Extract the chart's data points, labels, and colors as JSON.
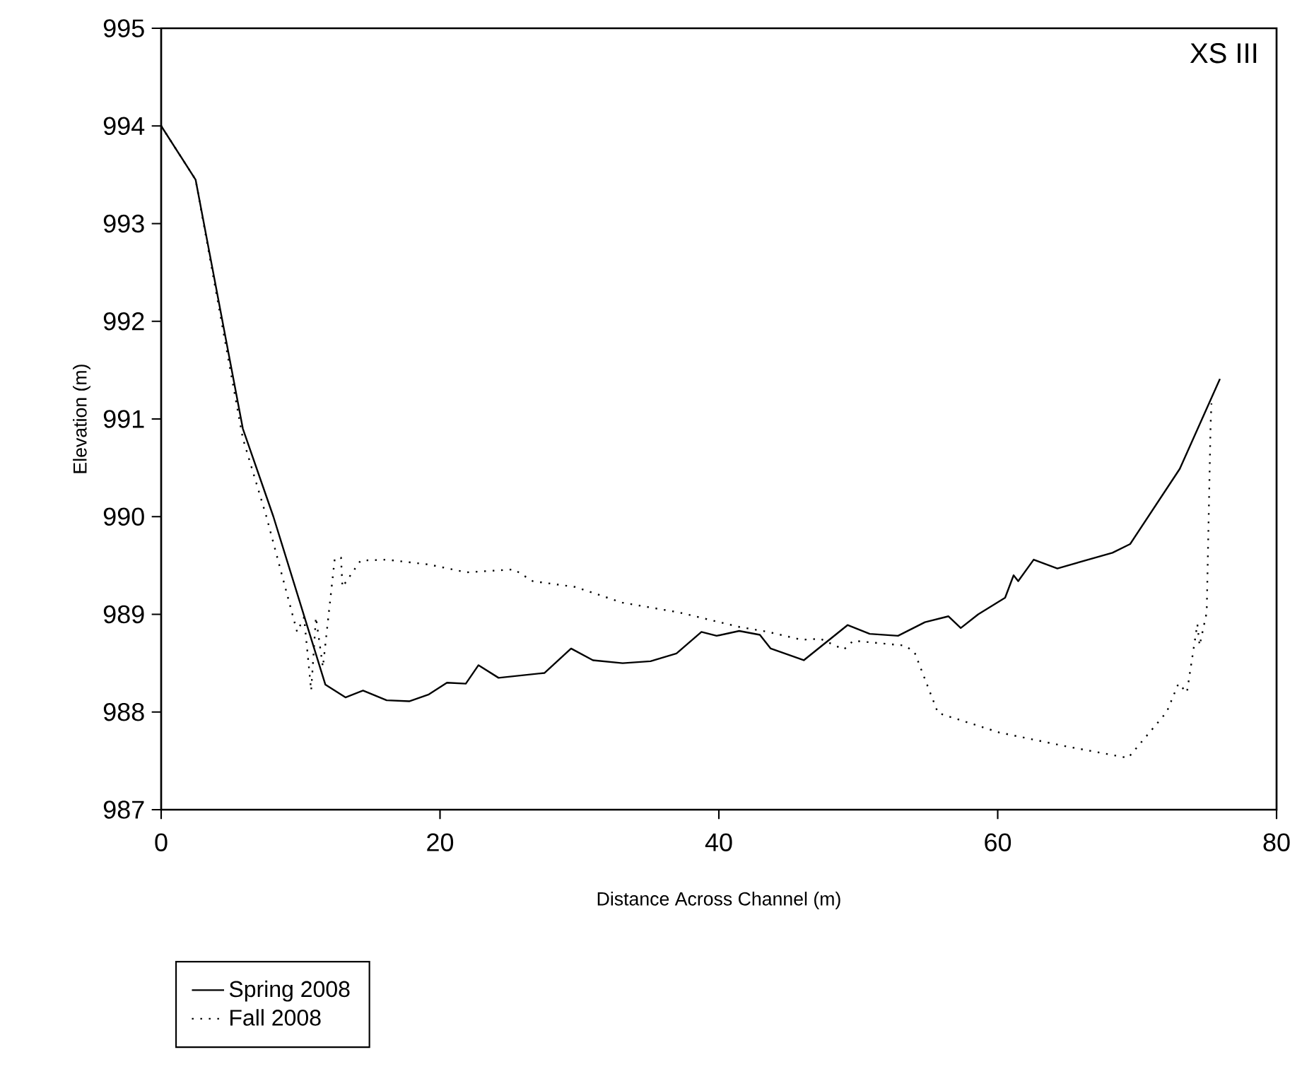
{
  "chart_data": {
    "type": "line",
    "title": "XS III",
    "xlabel": "Distance Across Channel (m)",
    "ylabel": "Elevation (m)",
    "xlim": [
      0,
      80
    ],
    "xticks": [
      0,
      20,
      40,
      60,
      80
    ],
    "ylim": [
      987,
      995
    ],
    "yticks": [
      987,
      988,
      989,
      990,
      991,
      992,
      993,
      994,
      995
    ],
    "grid": false,
    "legend": "bottom left",
    "marker": "none",
    "series": [
      {
        "name": "Spring 2008",
        "color": "#000000",
        "line_style": "solid",
        "x": [
          0,
          2.47,
          5.86,
          8.05,
          11.78,
          13.22,
          14.48,
          16.17,
          17.79,
          19.2,
          20.5,
          21.85,
          22.76,
          24.2,
          27.5,
          29.4,
          30.97,
          33.1,
          35.1,
          36.96,
          38.75,
          39.84,
          41.46,
          42.94,
          43.72,
          46.09,
          49.23,
          50.82,
          52.85,
          54.78,
          56.47,
          57.35,
          58.6,
          60.53,
          61.14,
          61.47,
          62.58,
          64.28,
          68.23,
          69.5,
          73.06,
          75.94
        ],
        "values": [
          994,
          993.45,
          990.9,
          990.0,
          988.28,
          988.15,
          988.22,
          988.12,
          988.11,
          988.18,
          988.3,
          988.29,
          988.48,
          988.35,
          988.4,
          988.65,
          988.53,
          988.5,
          988.52,
          988.6,
          988.82,
          988.78,
          988.83,
          988.79,
          988.65,
          988.53,
          988.89,
          988.8,
          988.78,
          988.92,
          988.98,
          988.86,
          989.0,
          989.17,
          989.4,
          989.34,
          989.56,
          989.47,
          989.63,
          989.72,
          990.49,
          991.41
        ]
      },
      {
        "name": "Fall 2008",
        "color": "#000000",
        "line_style": "dotted",
        "x": [
          0,
          2.47,
          5.86,
          7.55,
          9.75,
          10.25,
          10.76,
          11.1,
          11.6,
          12.45,
          12.9,
          13.0,
          14.3,
          16.17,
          19.2,
          21.9,
          25.3,
          26.65,
          29.7,
          33.07,
          37.13,
          41.5,
          43.55,
          45.92,
          47.27,
          48.97,
          49.64,
          53.36,
          54.04,
          55.72,
          60.12,
          64.85,
          69.35,
          72.12,
          72.96,
          73.57,
          74.32,
          74.48,
          74.99,
          75.27,
          75.33
        ],
        "values": [
          994,
          993.45,
          990.8,
          990.0,
          988.82,
          988.97,
          988.22,
          988.97,
          988.46,
          989.57,
          989.58,
          989.28,
          989.55,
          989.56,
          989.51,
          989.43,
          989.46,
          989.34,
          989.28,
          989.12,
          989.02,
          988.87,
          988.82,
          988.74,
          988.75,
          988.64,
          988.73,
          988.68,
          988.61,
          987.99,
          987.79,
          987.65,
          987.53,
          988.0,
          988.29,
          988.2,
          988.9,
          988.68,
          989.02,
          990.95,
          991.16
        ]
      }
    ]
  }
}
